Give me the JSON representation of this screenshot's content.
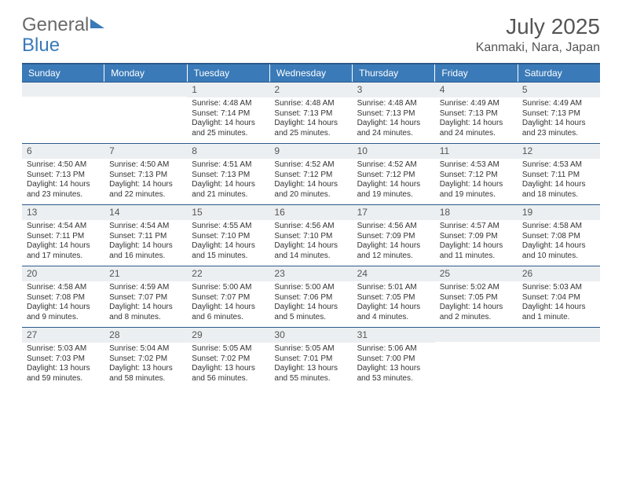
{
  "logo": {
    "general": "General",
    "blue": "Blue"
  },
  "title": "July 2025",
  "location": "Kanmaki, Nara, Japan",
  "colors": {
    "accent": "#3a7ab8",
    "header_border": "#2c5a8a",
    "daynum_bg": "#eceff1",
    "text": "#333333",
    "title_text": "#555555"
  },
  "day_headers": [
    "Sunday",
    "Monday",
    "Tuesday",
    "Wednesday",
    "Thursday",
    "Friday",
    "Saturday"
  ],
  "weeks": [
    [
      {
        "n": "",
        "sr": "",
        "ss": "",
        "dl": ""
      },
      {
        "n": "",
        "sr": "",
        "ss": "",
        "dl": ""
      },
      {
        "n": "1",
        "sr": "Sunrise: 4:48 AM",
        "ss": "Sunset: 7:14 PM",
        "dl": "Daylight: 14 hours and 25 minutes."
      },
      {
        "n": "2",
        "sr": "Sunrise: 4:48 AM",
        "ss": "Sunset: 7:13 PM",
        "dl": "Daylight: 14 hours and 25 minutes."
      },
      {
        "n": "3",
        "sr": "Sunrise: 4:48 AM",
        "ss": "Sunset: 7:13 PM",
        "dl": "Daylight: 14 hours and 24 minutes."
      },
      {
        "n": "4",
        "sr": "Sunrise: 4:49 AM",
        "ss": "Sunset: 7:13 PM",
        "dl": "Daylight: 14 hours and 24 minutes."
      },
      {
        "n": "5",
        "sr": "Sunrise: 4:49 AM",
        "ss": "Sunset: 7:13 PM",
        "dl": "Daylight: 14 hours and 23 minutes."
      }
    ],
    [
      {
        "n": "6",
        "sr": "Sunrise: 4:50 AM",
        "ss": "Sunset: 7:13 PM",
        "dl": "Daylight: 14 hours and 23 minutes."
      },
      {
        "n": "7",
        "sr": "Sunrise: 4:50 AM",
        "ss": "Sunset: 7:13 PM",
        "dl": "Daylight: 14 hours and 22 minutes."
      },
      {
        "n": "8",
        "sr": "Sunrise: 4:51 AM",
        "ss": "Sunset: 7:13 PM",
        "dl": "Daylight: 14 hours and 21 minutes."
      },
      {
        "n": "9",
        "sr": "Sunrise: 4:52 AM",
        "ss": "Sunset: 7:12 PM",
        "dl": "Daylight: 14 hours and 20 minutes."
      },
      {
        "n": "10",
        "sr": "Sunrise: 4:52 AM",
        "ss": "Sunset: 7:12 PM",
        "dl": "Daylight: 14 hours and 19 minutes."
      },
      {
        "n": "11",
        "sr": "Sunrise: 4:53 AM",
        "ss": "Sunset: 7:12 PM",
        "dl": "Daylight: 14 hours and 19 minutes."
      },
      {
        "n": "12",
        "sr": "Sunrise: 4:53 AM",
        "ss": "Sunset: 7:11 PM",
        "dl": "Daylight: 14 hours and 18 minutes."
      }
    ],
    [
      {
        "n": "13",
        "sr": "Sunrise: 4:54 AM",
        "ss": "Sunset: 7:11 PM",
        "dl": "Daylight: 14 hours and 17 minutes."
      },
      {
        "n": "14",
        "sr": "Sunrise: 4:54 AM",
        "ss": "Sunset: 7:11 PM",
        "dl": "Daylight: 14 hours and 16 minutes."
      },
      {
        "n": "15",
        "sr": "Sunrise: 4:55 AM",
        "ss": "Sunset: 7:10 PM",
        "dl": "Daylight: 14 hours and 15 minutes."
      },
      {
        "n": "16",
        "sr": "Sunrise: 4:56 AM",
        "ss": "Sunset: 7:10 PM",
        "dl": "Daylight: 14 hours and 14 minutes."
      },
      {
        "n": "17",
        "sr": "Sunrise: 4:56 AM",
        "ss": "Sunset: 7:09 PM",
        "dl": "Daylight: 14 hours and 12 minutes."
      },
      {
        "n": "18",
        "sr": "Sunrise: 4:57 AM",
        "ss": "Sunset: 7:09 PM",
        "dl": "Daylight: 14 hours and 11 minutes."
      },
      {
        "n": "19",
        "sr": "Sunrise: 4:58 AM",
        "ss": "Sunset: 7:08 PM",
        "dl": "Daylight: 14 hours and 10 minutes."
      }
    ],
    [
      {
        "n": "20",
        "sr": "Sunrise: 4:58 AM",
        "ss": "Sunset: 7:08 PM",
        "dl": "Daylight: 14 hours and 9 minutes."
      },
      {
        "n": "21",
        "sr": "Sunrise: 4:59 AM",
        "ss": "Sunset: 7:07 PM",
        "dl": "Daylight: 14 hours and 8 minutes."
      },
      {
        "n": "22",
        "sr": "Sunrise: 5:00 AM",
        "ss": "Sunset: 7:07 PM",
        "dl": "Daylight: 14 hours and 6 minutes."
      },
      {
        "n": "23",
        "sr": "Sunrise: 5:00 AM",
        "ss": "Sunset: 7:06 PM",
        "dl": "Daylight: 14 hours and 5 minutes."
      },
      {
        "n": "24",
        "sr": "Sunrise: 5:01 AM",
        "ss": "Sunset: 7:05 PM",
        "dl": "Daylight: 14 hours and 4 minutes."
      },
      {
        "n": "25",
        "sr": "Sunrise: 5:02 AM",
        "ss": "Sunset: 7:05 PM",
        "dl": "Daylight: 14 hours and 2 minutes."
      },
      {
        "n": "26",
        "sr": "Sunrise: 5:03 AM",
        "ss": "Sunset: 7:04 PM",
        "dl": "Daylight: 14 hours and 1 minute."
      }
    ],
    [
      {
        "n": "27",
        "sr": "Sunrise: 5:03 AM",
        "ss": "Sunset: 7:03 PM",
        "dl": "Daylight: 13 hours and 59 minutes."
      },
      {
        "n": "28",
        "sr": "Sunrise: 5:04 AM",
        "ss": "Sunset: 7:02 PM",
        "dl": "Daylight: 13 hours and 58 minutes."
      },
      {
        "n": "29",
        "sr": "Sunrise: 5:05 AM",
        "ss": "Sunset: 7:02 PM",
        "dl": "Daylight: 13 hours and 56 minutes."
      },
      {
        "n": "30",
        "sr": "Sunrise: 5:05 AM",
        "ss": "Sunset: 7:01 PM",
        "dl": "Daylight: 13 hours and 55 minutes."
      },
      {
        "n": "31",
        "sr": "Sunrise: 5:06 AM",
        "ss": "Sunset: 7:00 PM",
        "dl": "Daylight: 13 hours and 53 minutes."
      },
      {
        "n": "",
        "sr": "",
        "ss": "",
        "dl": ""
      },
      {
        "n": "",
        "sr": "",
        "ss": "",
        "dl": ""
      }
    ]
  ]
}
